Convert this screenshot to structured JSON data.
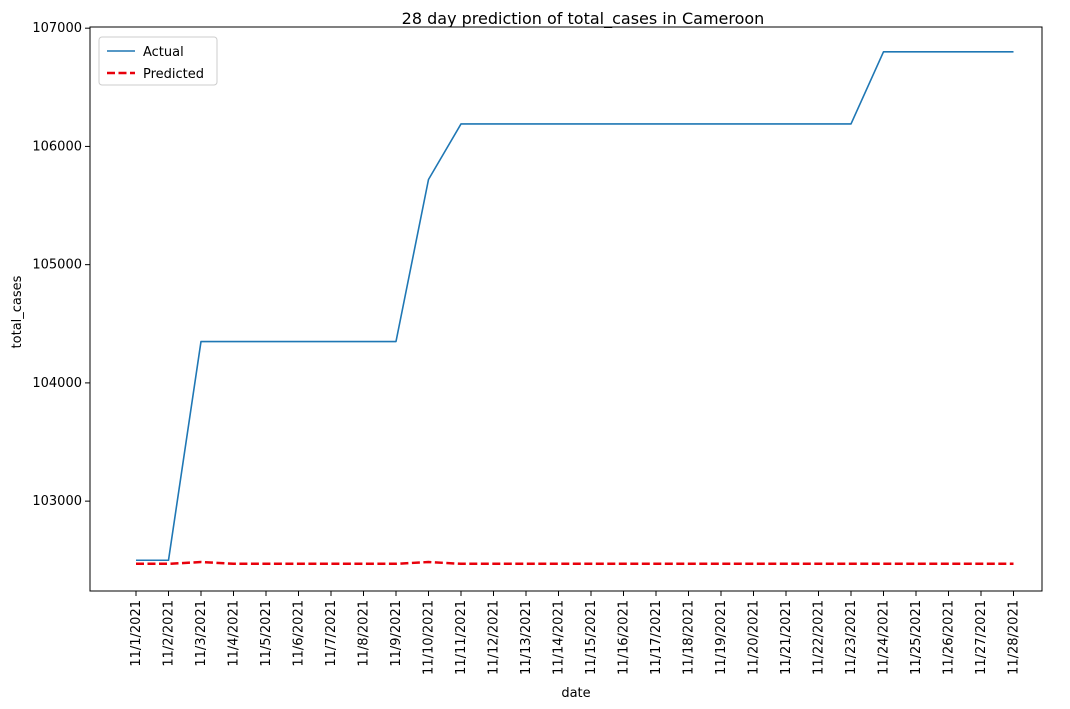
{
  "chart_data": {
    "type": "line",
    "title": "28 day prediction of total_cases in Cameroon",
    "xlabel": "date",
    "ylabel": "total_cases",
    "ylim": [
      102240,
      107010
    ],
    "yticks": [
      103000,
      104000,
      105000,
      106000,
      107000
    ],
    "grid": false,
    "legend_position": "top-left",
    "categories": [
      "11/1/2021",
      "11/2/2021",
      "11/3/2021",
      "11/4/2021",
      "11/5/2021",
      "11/6/2021",
      "11/7/2021",
      "11/8/2021",
      "11/9/2021",
      "11/10/2021",
      "11/11/2021",
      "11/12/2021",
      "11/13/2021",
      "11/14/2021",
      "11/15/2021",
      "11/16/2021",
      "11/17/2021",
      "11/18/2021",
      "11/19/2021",
      "11/20/2021",
      "11/21/2021",
      "11/22/2021",
      "11/23/2021",
      "11/24/2021",
      "11/25/2021",
      "11/26/2021",
      "11/27/2021",
      "11/28/2021"
    ],
    "series": [
      {
        "name": "Actual",
        "color": "#1f77b4",
        "dash": "solid",
        "values": [
          102500,
          102500,
          104350,
          104350,
          104350,
          104350,
          104350,
          104350,
          104350,
          105720,
          106190,
          106190,
          106190,
          106190,
          106190,
          106190,
          106190,
          106190,
          106190,
          106190,
          106190,
          106190,
          106190,
          106800,
          106800,
          106800,
          106800,
          106800
        ]
      },
      {
        "name": "Predicted",
        "color": "#e8000b",
        "dash": "dashed",
        "values": [
          102470,
          102470,
          102485,
          102470,
          102470,
          102470,
          102470,
          102470,
          102470,
          102485,
          102470,
          102470,
          102470,
          102470,
          102470,
          102470,
          102470,
          102470,
          102470,
          102470,
          102470,
          102470,
          102470,
          102470,
          102470,
          102470,
          102470,
          102470
        ]
      }
    ]
  }
}
